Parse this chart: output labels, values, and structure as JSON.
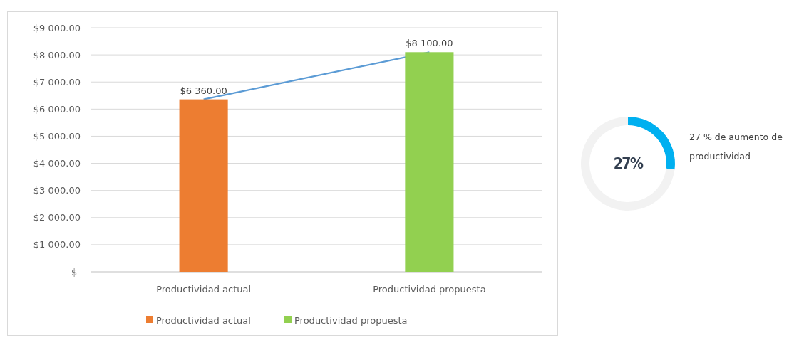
{
  "chart_data": [
    {
      "type": "bar",
      "categories": [
        "Productividad actual",
        "Productividad propuesta"
      ],
      "series": [
        {
          "type": "bar",
          "name": "Productividad actual",
          "values": [
            6360,
            null
          ],
          "color": "#ed7d31",
          "value_labels": [
            "$6 360.00",
            null
          ]
        },
        {
          "type": "bar",
          "name": "Productividad propuesta",
          "values": [
            null,
            8100
          ],
          "color": "#92d050",
          "value_labels": [
            null,
            "$8 100.00"
          ]
        },
        {
          "type": "line",
          "values": [
            6360,
            8100
          ],
          "color": "#5b9bd5"
        }
      ],
      "ylim": [
        0,
        9000
      ],
      "yticks": [
        {
          "value": 0,
          "label": "$-"
        },
        {
          "value": 1000,
          "label": "$1 000.00"
        },
        {
          "value": 2000,
          "label": "$2 000.00"
        },
        {
          "value": 3000,
          "label": "$3 000.00"
        },
        {
          "value": 4000,
          "label": "$4 000.00"
        },
        {
          "value": 5000,
          "label": "$5 000.00"
        },
        {
          "value": 6000,
          "label": "$6 000.00"
        },
        {
          "value": 7000,
          "label": "$7 000.00"
        },
        {
          "value": 8000,
          "label": "$8 000.00"
        },
        {
          "value": 9000,
          "label": "$9 000.00"
        }
      ],
      "grid": "y",
      "legend": "bottom",
      "marker": "none",
      "stacked": true
    },
    {
      "type": "donut",
      "categories": [
        null,
        null
      ],
      "values": [
        27,
        73
      ],
      "colors": [
        "#00b0f0",
        "#f2f2f2"
      ],
      "annotations": [
        "27%",
        "27 % de aumento de productividad"
      ]
    }
  ]
}
